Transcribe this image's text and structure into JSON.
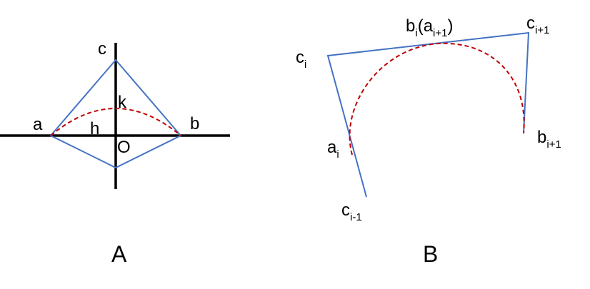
{
  "colors": {
    "axis": "#000000",
    "polygon": "#4472c4",
    "arc": "#c00000"
  },
  "panel_a": {
    "title": "A",
    "labels": {
      "c": "c",
      "k": "k",
      "a": "a",
      "h": "h",
      "b": "b",
      "o": "O"
    }
  },
  "panel_b": {
    "title": "B",
    "labels": {
      "c_i": {
        "main": "c",
        "sub": "i"
      },
      "b_i": {
        "main": "b",
        "sub": "i",
        "paren_open": "(a",
        "paren_sub": "i+1",
        "paren_close": ")"
      },
      "c_i1": {
        "main": "c",
        "sub": "i+1"
      },
      "a_i": {
        "main": "a",
        "sub": "i"
      },
      "b_i1": {
        "main": "b",
        "sub": "i+1"
      },
      "c_im1": {
        "main": "c",
        "sub": "i-1"
      }
    }
  }
}
